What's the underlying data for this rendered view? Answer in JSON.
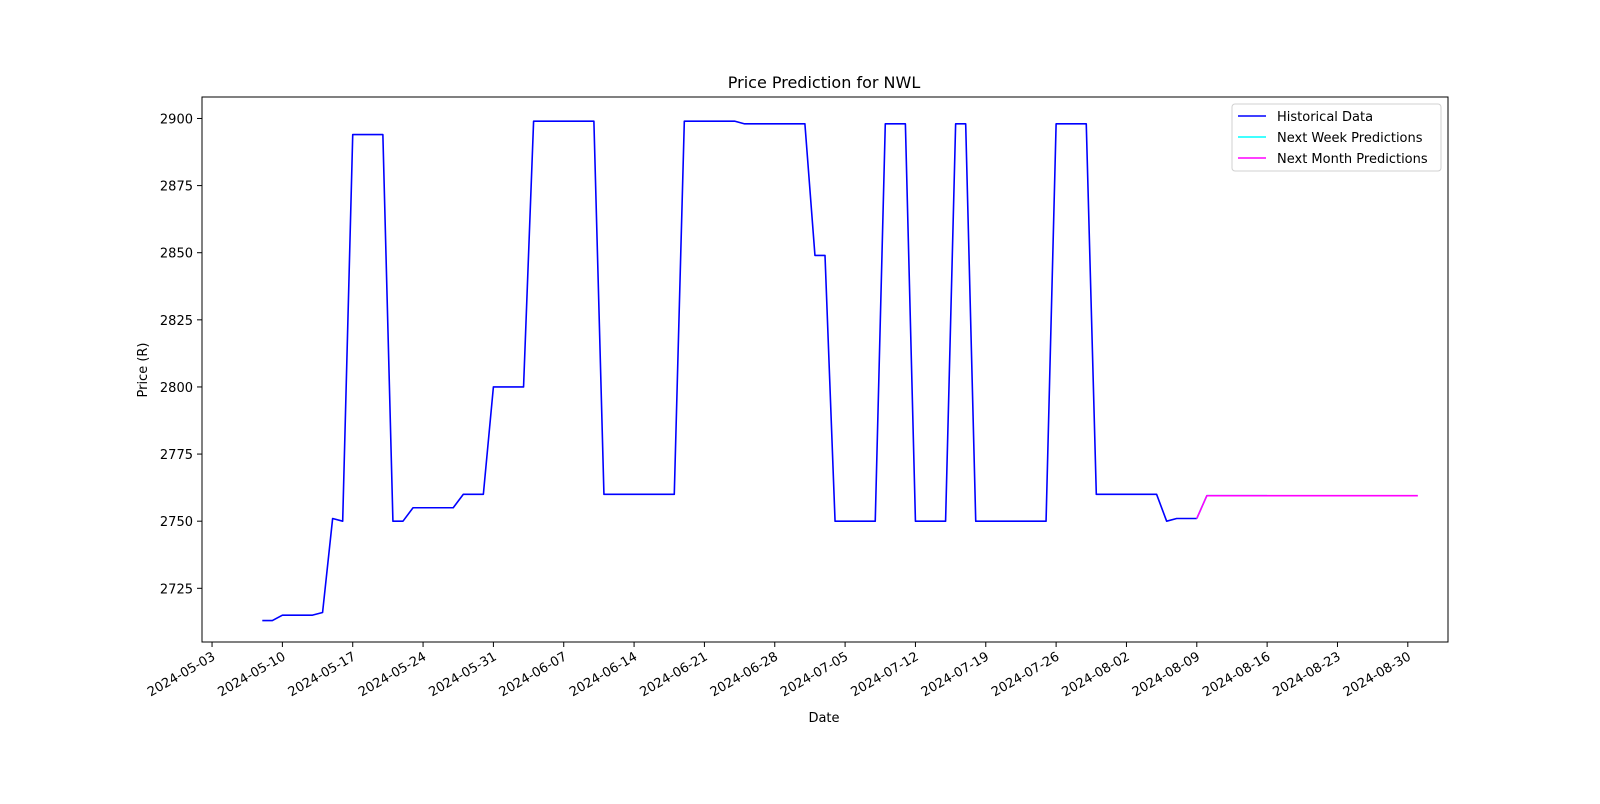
{
  "chart_data": {
    "type": "line",
    "title": "Price Prediction for NWL",
    "xlabel": "Date",
    "ylabel": "Price (R)",
    "xlim": [
      "2024-05-02",
      "2024-09-03"
    ],
    "ylim": [
      2705,
      2908
    ],
    "x_ticks": [
      "2024-05-03",
      "2024-05-10",
      "2024-05-17",
      "2024-05-24",
      "2024-05-31",
      "2024-06-07",
      "2024-06-14",
      "2024-06-21",
      "2024-06-28",
      "2024-07-05",
      "2024-07-12",
      "2024-07-19",
      "2024-07-26",
      "2024-08-02",
      "2024-08-09",
      "2024-08-16",
      "2024-08-23",
      "2024-08-30"
    ],
    "y_ticks": [
      2725,
      2750,
      2775,
      2800,
      2825,
      2850,
      2875,
      2900
    ],
    "grid": false,
    "legend_position": "top-right",
    "series": [
      {
        "name": "Historical Data",
        "color": "#0000ff",
        "points": [
          [
            "2024-05-08",
            2713
          ],
          [
            "2024-05-09",
            2713
          ],
          [
            "2024-05-10",
            2715
          ],
          [
            "2024-05-13",
            2715
          ],
          [
            "2024-05-14",
            2716
          ],
          [
            "2024-05-15",
            2751
          ],
          [
            "2024-05-16",
            2750
          ],
          [
            "2024-05-17",
            2894
          ],
          [
            "2024-05-20",
            2894
          ],
          [
            "2024-05-21",
            2750
          ],
          [
            "2024-05-22",
            2750
          ],
          [
            "2024-05-23",
            2755
          ],
          [
            "2024-05-27",
            2755
          ],
          [
            "2024-05-28",
            2760
          ],
          [
            "2024-05-30",
            2760
          ],
          [
            "2024-05-31",
            2800
          ],
          [
            "2024-06-03",
            2800
          ],
          [
            "2024-06-04",
            2899
          ],
          [
            "2024-06-10",
            2899
          ],
          [
            "2024-06-11",
            2760
          ],
          [
            "2024-06-18",
            2760
          ],
          [
            "2024-06-19",
            2899
          ],
          [
            "2024-06-24",
            2899
          ],
          [
            "2024-06-25",
            2898
          ],
          [
            "2024-07-01",
            2898
          ],
          [
            "2024-07-02",
            2849
          ],
          [
            "2024-07-03",
            2849
          ],
          [
            "2024-07-04",
            2750
          ],
          [
            "2024-07-08",
            2750
          ],
          [
            "2024-07-09",
            2898
          ],
          [
            "2024-07-11",
            2898
          ],
          [
            "2024-07-12",
            2750
          ],
          [
            "2024-07-15",
            2750
          ],
          [
            "2024-07-16",
            2898
          ],
          [
            "2024-07-17",
            2898
          ],
          [
            "2024-07-18",
            2750
          ],
          [
            "2024-07-25",
            2750
          ],
          [
            "2024-07-26",
            2898
          ],
          [
            "2024-07-29",
            2898
          ],
          [
            "2024-07-30",
            2760
          ],
          [
            "2024-08-05",
            2760
          ],
          [
            "2024-08-06",
            2750
          ],
          [
            "2024-08-07",
            2751
          ],
          [
            "2024-08-09",
            2751
          ]
        ]
      },
      {
        "name": "Next Week Predictions",
        "color": "#00ffff",
        "points": [
          [
            "2024-08-09",
            2751
          ],
          [
            "2024-08-10",
            2759.5
          ],
          [
            "2024-08-11",
            2759.5
          ],
          [
            "2024-08-12",
            2759.5
          ],
          [
            "2024-08-13",
            2759.5
          ],
          [
            "2024-08-14",
            2759.5
          ],
          [
            "2024-08-15",
            2759.5
          ],
          [
            "2024-08-16",
            2759.5
          ]
        ]
      },
      {
        "name": "Next Month Predictions",
        "color": "#ff00ff",
        "points": [
          [
            "2024-08-09",
            2751
          ],
          [
            "2024-08-10",
            2759.5
          ],
          [
            "2024-08-31",
            2759.5
          ]
        ]
      }
    ]
  }
}
